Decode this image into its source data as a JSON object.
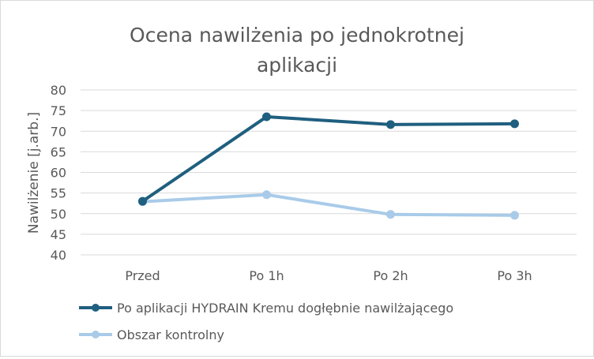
{
  "chart_data": {
    "type": "line",
    "title_lines": [
      "Ocena nawilżenia po jednokrotnej",
      "aplikacji"
    ],
    "xlabel": "",
    "ylabel": "Nawilżenie [j.arb.]",
    "categories": [
      "Przed",
      "Po 1h",
      "Po 2h",
      "Po 3h"
    ],
    "ylim": [
      40,
      80
    ],
    "yticks": [
      40,
      45,
      50,
      55,
      60,
      65,
      70,
      75,
      80
    ],
    "grid": true,
    "legend_position": "bottom",
    "series": [
      {
        "name": "Po aplikacji HYDRAIN Kremu dogłębnie nawilżającego",
        "color": "#1f5f7f",
        "values": [
          53,
          73.5,
          71.6,
          71.8
        ]
      },
      {
        "name": "Obszar kontrolny",
        "color": "#a9cbe9",
        "values": [
          52.9,
          54.6,
          49.8,
          49.6
        ]
      }
    ]
  }
}
